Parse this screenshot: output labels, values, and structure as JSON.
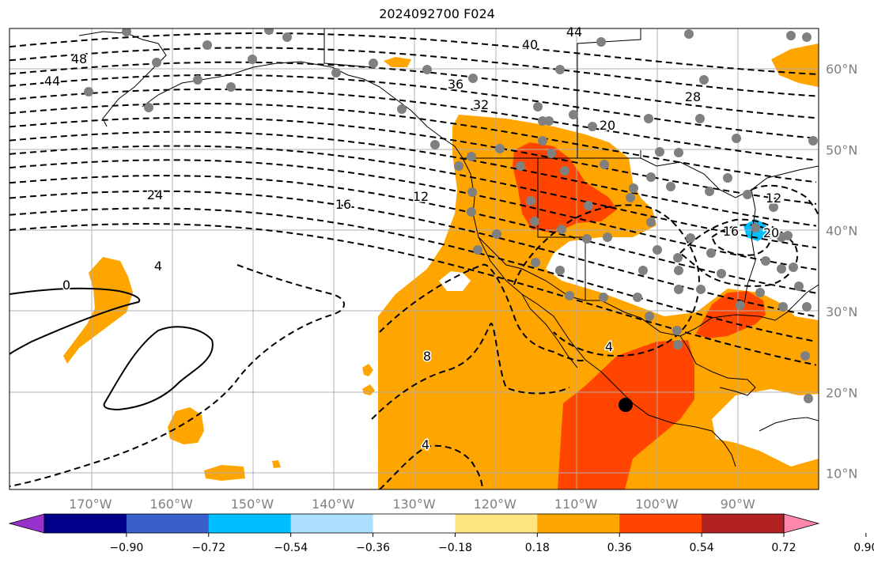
{
  "title": "2024092700 F024",
  "map": {
    "projection": "cylindrical",
    "lon_range": [
      -180,
      -80
    ],
    "lat_range": [
      8,
      65
    ],
    "grid": true,
    "lon_ticks": [
      "170°W",
      "160°W",
      "150°W",
      "140°W",
      "130°W",
      "120°W",
      "110°W",
      "100°W",
      "90°W"
    ],
    "lat_ticks": [
      "10°N",
      "20°N",
      "30°N",
      "40°N",
      "50°N",
      "60°N"
    ],
    "contour_labels": [
      "48",
      "44",
      "40",
      "44",
      "36",
      "32",
      "28",
      "24",
      "20",
      "16",
      "12",
      "4",
      "0",
      "8",
      "4",
      "4",
      "12",
      "16",
      "20"
    ],
    "colors": {
      "ocean_background": "#ffffff",
      "coastline": "#000000",
      "station_dot": "#808080",
      "marker": "#000000"
    }
  },
  "colorbar": {
    "ticks": [
      "−0.90",
      "−0.72",
      "−0.54",
      "−0.36",
      "−0.18",
      "0.18",
      "0.36",
      "0.54",
      "0.72",
      "0.90"
    ],
    "colors": [
      "#9932CC",
      "#00008B",
      "#3A5FCD",
      "#00BFFF",
      "#ADDFFF",
      "#FFFFFF",
      "#FFE680",
      "#FFA500",
      "#FF4500",
      "#B22222",
      "#FF88AA"
    ]
  }
}
